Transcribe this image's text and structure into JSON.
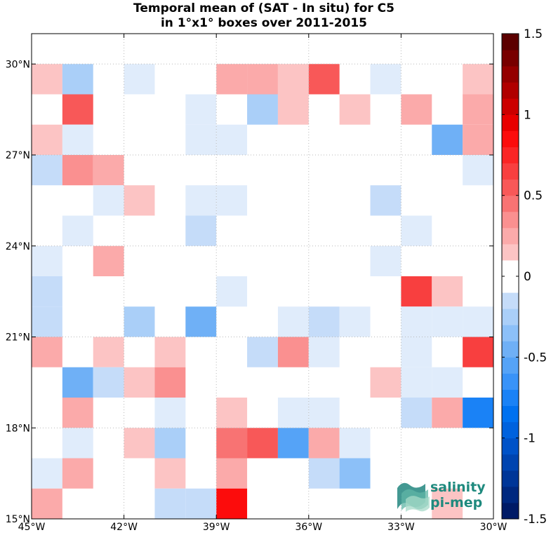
{
  "chart_data": {
    "type": "heatmap",
    "title": "Temporal mean of (SAT - In situ) for C5",
    "subtitle": "in 1°x1° boxes over 2011-2015",
    "xlim": [
      -45,
      -30
    ],
    "ylim": [
      15,
      31
    ],
    "x_ticks": [
      -45,
      -42,
      -39,
      -36,
      -33,
      -30
    ],
    "x_tick_labels": [
      "45°W",
      "42°W",
      "39°W",
      "36°W",
      "33°W",
      "30°W"
    ],
    "y_ticks": [
      15,
      18,
      21,
      24,
      27,
      30
    ],
    "y_tick_labels": [
      "15°N",
      "18°N",
      "21°N",
      "24°N",
      "27°N",
      "30°N"
    ],
    "grid": true,
    "colorbar": {
      "range": [
        -1.5,
        1.5
      ],
      "ticks": [
        -1.5,
        -1,
        -0.5,
        0,
        0.5,
        1,
        1.5
      ],
      "tick_labels": [
        "-1.5",
        "-1",
        "-0.5",
        "0",
        "0.5",
        "1",
        "1.5"
      ],
      "step": 0.1
    },
    "cells": [
      {
        "lon": -45,
        "lat": 29,
        "value": 0.2
      },
      {
        "lon": -44,
        "lat": 29,
        "value": -0.3
      },
      {
        "lon": -42,
        "lat": 29,
        "value": -0.1
      },
      {
        "lon": -39,
        "lat": 29,
        "value": 0.3
      },
      {
        "lon": -38,
        "lat": 29,
        "value": 0.3
      },
      {
        "lon": -37,
        "lat": 29,
        "value": 0.2
      },
      {
        "lon": -36,
        "lat": 29,
        "value": 0.6
      },
      {
        "lon": -34,
        "lat": 29,
        "value": -0.1
      },
      {
        "lon": -31,
        "lat": 29,
        "value": 0.2
      },
      {
        "lon": -44,
        "lat": 28,
        "value": 0.6
      },
      {
        "lon": -40,
        "lat": 28,
        "value": -0.1
      },
      {
        "lon": -38,
        "lat": 28,
        "value": -0.3
      },
      {
        "lon": -37,
        "lat": 28,
        "value": 0.2
      },
      {
        "lon": -35,
        "lat": 28,
        "value": 0.2
      },
      {
        "lon": -33,
        "lat": 28,
        "value": 0.3
      },
      {
        "lon": -31,
        "lat": 28,
        "value": 0.3
      },
      {
        "lon": -45,
        "lat": 27,
        "value": 0.2
      },
      {
        "lon": -44,
        "lat": 27,
        "value": -0.1
      },
      {
        "lon": -40,
        "lat": 27,
        "value": -0.1
      },
      {
        "lon": -39,
        "lat": 27,
        "value": -0.1
      },
      {
        "lon": -32,
        "lat": 27,
        "value": -0.5
      },
      {
        "lon": -31,
        "lat": 27,
        "value": 0.3
      },
      {
        "lon": -45,
        "lat": 26,
        "value": -0.2
      },
      {
        "lon": -44,
        "lat": 26,
        "value": 0.4
      },
      {
        "lon": -43,
        "lat": 26,
        "value": 0.3
      },
      {
        "lon": -31,
        "lat": 26,
        "value": -0.1
      },
      {
        "lon": -43,
        "lat": 25,
        "value": -0.1
      },
      {
        "lon": -42,
        "lat": 25,
        "value": 0.2
      },
      {
        "lon": -40,
        "lat": 25,
        "value": -0.1
      },
      {
        "lon": -39,
        "lat": 25,
        "value": -0.1
      },
      {
        "lon": -34,
        "lat": 25,
        "value": -0.2
      },
      {
        "lon": -44,
        "lat": 24,
        "value": -0.1
      },
      {
        "lon": -40,
        "lat": 24,
        "value": -0.2
      },
      {
        "lon": -33,
        "lat": 24,
        "value": -0.1
      },
      {
        "lon": -45,
        "lat": 23,
        "value": -0.1
      },
      {
        "lon": -43,
        "lat": 23,
        "value": 0.3
      },
      {
        "lon": -34,
        "lat": 23,
        "value": -0.1
      },
      {
        "lon": -45,
        "lat": 22,
        "value": -0.2
      },
      {
        "lon": -39,
        "lat": 22,
        "value": -0.1
      },
      {
        "lon": -33,
        "lat": 22,
        "value": 0.7
      },
      {
        "lon": -32,
        "lat": 22,
        "value": 0.2
      },
      {
        "lon": -45,
        "lat": 21,
        "value": -0.2
      },
      {
        "lon": -42,
        "lat": 21,
        "value": -0.3
      },
      {
        "lon": -40,
        "lat": 21,
        "value": -0.5
      },
      {
        "lon": -37,
        "lat": 21,
        "value": -0.1
      },
      {
        "lon": -36,
        "lat": 21,
        "value": -0.2
      },
      {
        "lon": -35,
        "lat": 21,
        "value": -0.1
      },
      {
        "lon": -33,
        "lat": 21,
        "value": -0.1
      },
      {
        "lon": -32,
        "lat": 21,
        "value": -0.1
      },
      {
        "lon": -31,
        "lat": 21,
        "value": -0.1
      },
      {
        "lon": -45,
        "lat": 20,
        "value": 0.3
      },
      {
        "lon": -43,
        "lat": 20,
        "value": 0.2
      },
      {
        "lon": -41,
        "lat": 20,
        "value": 0.2
      },
      {
        "lon": -38,
        "lat": 20,
        "value": -0.2
      },
      {
        "lon": -37,
        "lat": 20,
        "value": 0.4
      },
      {
        "lon": -36,
        "lat": 20,
        "value": -0.1
      },
      {
        "lon": -33,
        "lat": 20,
        "value": -0.1
      },
      {
        "lon": -31,
        "lat": 20,
        "value": 0.7
      },
      {
        "lon": -44,
        "lat": 19,
        "value": -0.5
      },
      {
        "lon": -43,
        "lat": 19,
        "value": -0.2
      },
      {
        "lon": -42,
        "lat": 19,
        "value": 0.2
      },
      {
        "lon": -41,
        "lat": 19,
        "value": 0.4
      },
      {
        "lon": -34,
        "lat": 19,
        "value": 0.2
      },
      {
        "lon": -33,
        "lat": 19,
        "value": -0.1
      },
      {
        "lon": -32,
        "lat": 19,
        "value": -0.1
      },
      {
        "lon": -44,
        "lat": 18,
        "value": 0.3
      },
      {
        "lon": -41,
        "lat": 18,
        "value": -0.1
      },
      {
        "lon": -39,
        "lat": 18,
        "value": 0.2
      },
      {
        "lon": -37,
        "lat": 18,
        "value": -0.1
      },
      {
        "lon": -36,
        "lat": 18,
        "value": -0.1
      },
      {
        "lon": -33,
        "lat": 18,
        "value": -0.2
      },
      {
        "lon": -32,
        "lat": 18,
        "value": 0.3
      },
      {
        "lon": -31,
        "lat": 18,
        "value": -0.8
      },
      {
        "lon": -44,
        "lat": 17,
        "value": -0.1
      },
      {
        "lon": -42,
        "lat": 17,
        "value": 0.2
      },
      {
        "lon": -41,
        "lat": 17,
        "value": -0.3
      },
      {
        "lon": -39,
        "lat": 17,
        "value": 0.5
      },
      {
        "lon": -38,
        "lat": 17,
        "value": 0.6
      },
      {
        "lon": -37,
        "lat": 17,
        "value": -0.6
      },
      {
        "lon": -36,
        "lat": 17,
        "value": 0.3
      },
      {
        "lon": -35,
        "lat": 17,
        "value": -0.1
      },
      {
        "lon": -45,
        "lat": 16,
        "value": -0.1
      },
      {
        "lon": -44,
        "lat": 16,
        "value": 0.3
      },
      {
        "lon": -41,
        "lat": 16,
        "value": 0.2
      },
      {
        "lon": -39,
        "lat": 16,
        "value": 0.3
      },
      {
        "lon": -36,
        "lat": 16,
        "value": -0.2
      },
      {
        "lon": -35,
        "lat": 16,
        "value": -0.4
      },
      {
        "lon": -45,
        "lat": 15,
        "value": 0.3
      },
      {
        "lon": -41,
        "lat": 15,
        "value": -0.2
      },
      {
        "lon": -40,
        "lat": 15,
        "value": -0.2
      },
      {
        "lon": -39,
        "lat": 15,
        "value": 0.9
      },
      {
        "lon": -32,
        "lat": 15,
        "value": 0.2
      }
    ]
  },
  "logo": {
    "line1": "salinity",
    "line2": "pi-mep"
  }
}
